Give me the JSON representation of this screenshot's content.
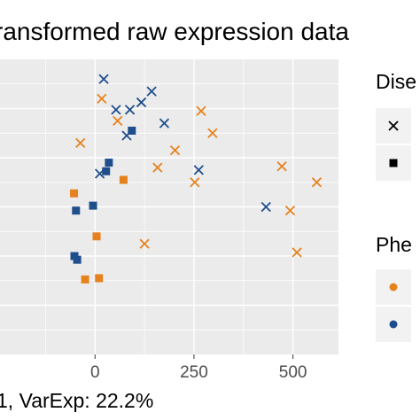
{
  "chart_data": {
    "type": "scatter",
    "title": "ransformed raw expression data",
    "xlabel": "1, VarExp: 22.2%",
    "xlim": [
      -240,
      615
    ],
    "ylim": [
      0,
      12
    ],
    "x_ticks": [
      0,
      250,
      500
    ],
    "x_tick_labels": [
      "0",
      "250",
      "500"
    ],
    "grid": true,
    "legends": [
      {
        "title": "Dise",
        "placement": "right",
        "shapes": [
          "x",
          "square"
        ]
      },
      {
        "title": "Phe",
        "placement": "right",
        "colors": [
          "#e6821e",
          "#1f4e8c"
        ]
      }
    ],
    "colors": {
      "orange": "#e6821e",
      "blue": "#1f4e8c",
      "panel": "#ebebeb",
      "grid": "#ffffff"
    },
    "points": [
      {
        "x": 22,
        "y": 11.2,
        "shape": "x",
        "color": "blue"
      },
      {
        "x": 143,
        "y": 10.7,
        "shape": "x",
        "color": "blue"
      },
      {
        "x": 17,
        "y": 10.4,
        "shape": "x",
        "color": "orange"
      },
      {
        "x": 117,
        "y": 10.25,
        "shape": "x",
        "color": "blue"
      },
      {
        "x": 53,
        "y": 9.95,
        "shape": "x",
        "color": "blue"
      },
      {
        "x": 88,
        "y": 9.95,
        "shape": "x",
        "color": "blue"
      },
      {
        "x": 268,
        "y": 9.9,
        "shape": "x",
        "color": "orange"
      },
      {
        "x": 175,
        "y": 9.4,
        "shape": "x",
        "color": "blue"
      },
      {
        "x": 57,
        "y": 9.5,
        "shape": "x",
        "color": "orange"
      },
      {
        "x": 80,
        "y": 8.9,
        "shape": "x",
        "color": "blue"
      },
      {
        "x": 297,
        "y": 9.0,
        "shape": "x",
        "color": "orange"
      },
      {
        "x": -37,
        "y": 8.6,
        "shape": "x",
        "color": "orange"
      },
      {
        "x": 202,
        "y": 8.3,
        "shape": "x",
        "color": "orange"
      },
      {
        "x": 158,
        "y": 7.6,
        "shape": "x",
        "color": "orange"
      },
      {
        "x": 472,
        "y": 7.65,
        "shape": "x",
        "color": "orange"
      },
      {
        "x": 262,
        "y": 7.5,
        "shape": "x",
        "color": "blue"
      },
      {
        "x": 12,
        "y": 7.35,
        "shape": "x",
        "color": "blue"
      },
      {
        "x": 252,
        "y": 7.0,
        "shape": "x",
        "color": "orange"
      },
      {
        "x": 560,
        "y": 7.0,
        "shape": "x",
        "color": "orange"
      },
      {
        "x": 432,
        "y": 6.0,
        "shape": "x",
        "color": "blue"
      },
      {
        "x": 493,
        "y": 5.85,
        "shape": "x",
        "color": "orange"
      },
      {
        "x": 125,
        "y": 4.5,
        "shape": "x",
        "color": "orange"
      },
      {
        "x": 510,
        "y": 4.15,
        "shape": "x",
        "color": "orange"
      },
      {
        "x": 93,
        "y": 9.1,
        "shape": "square",
        "color": "blue"
      },
      {
        "x": 35,
        "y": 7.8,
        "shape": "square",
        "color": "blue"
      },
      {
        "x": 28,
        "y": 7.45,
        "shape": "square",
        "color": "blue"
      },
      {
        "x": 72,
        "y": 7.1,
        "shape": "square",
        "color": "orange"
      },
      {
        "x": -53,
        "y": 6.55,
        "shape": "square",
        "color": "orange"
      },
      {
        "x": -5,
        "y": 6.05,
        "shape": "square",
        "color": "blue"
      },
      {
        "x": -48,
        "y": 5.85,
        "shape": "square",
        "color": "blue"
      },
      {
        "x": 4,
        "y": 4.8,
        "shape": "square",
        "color": "orange"
      },
      {
        "x": -52,
        "y": 4.0,
        "shape": "square",
        "color": "blue"
      },
      {
        "x": -45,
        "y": 3.85,
        "shape": "square",
        "color": "blue"
      },
      {
        "x": -25,
        "y": 3.05,
        "shape": "square",
        "color": "orange"
      },
      {
        "x": 10,
        "y": 3.1,
        "shape": "square",
        "color": "orange"
      }
    ]
  }
}
